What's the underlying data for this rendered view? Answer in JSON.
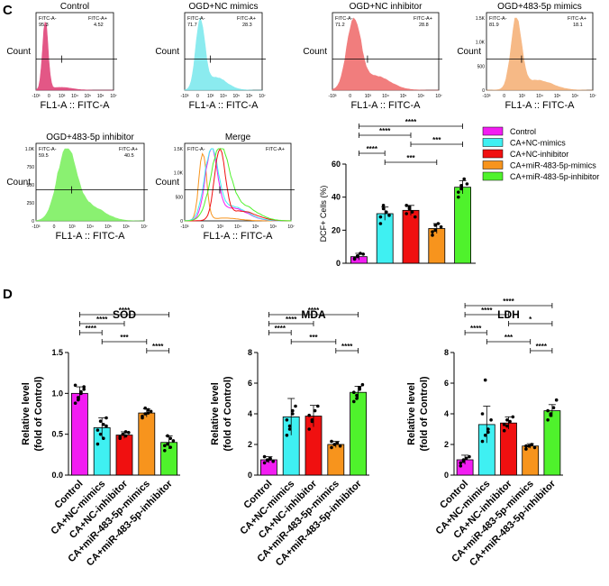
{
  "panel_labels": {
    "c": "C",
    "d": "D"
  },
  "colors": {
    "control": "#f21df2",
    "nc_mimics": "#3ff0f2",
    "nc_inhibitor": "#f01010",
    "mir_mimics": "#f7941d",
    "mir_inhibitor": "#4ff22c"
  },
  "legend": [
    "Control",
    "CA+NC-mimics",
    "CA+NC-inhibitor",
    "CA+miR-483-5p-mimics",
    "CA+miR-483-5p-inhibitor"
  ],
  "flow": {
    "xlabel": "FL1-A :: FITC-A",
    "ylabel": "Count",
    "gate_left": "FITC-A-",
    "gate_right": "FITC-A+",
    "panels": [
      {
        "title": "Control",
        "left_pct": "95.3",
        "right_pct": "4.52",
        "color": "#e0457a",
        "yticks": []
      },
      {
        "title": "OGD+NC mimics",
        "left_pct": "71.7",
        "right_pct": "28.3",
        "color": "#7fe9ee",
        "yticks": []
      },
      {
        "title": "OGD+NC inhibitor",
        "left_pct": "71.2",
        "right_pct": "28.8",
        "color": "#f07070",
        "yticks": []
      },
      {
        "title": "OGD+483-5p mimics",
        "left_pct": "81.9",
        "right_pct": "18.1",
        "color": "#f6b27a",
        "yticks": [
          "1.5K",
          "1.0K",
          "500",
          "0"
        ]
      },
      {
        "title": "OGD+483-5p inhibitor",
        "left_pct": "59.5",
        "right_pct": "40.5",
        "color": "#7ef062",
        "yticks": [
          "1.0K",
          "750",
          "500",
          "250",
          "0"
        ]
      },
      {
        "title": "Merge",
        "left_pct": "",
        "right_pct": "",
        "color": "",
        "yticks": [
          "1.5K",
          "1.0K",
          "500",
          "0"
        ]
      }
    ]
  },
  "chart_data": [
    {
      "type": "bar",
      "id": "dcf",
      "title": "",
      "ylabel": "DCF+ Cells (%)",
      "ylim": [
        0,
        60
      ],
      "yticks": [
        0,
        20,
        40,
        60
      ],
      "categories": [
        "Control",
        "CA+NC-mimics",
        "CA+NC-inhibitor",
        "CA+miR-483-5p-mimics",
        "CA+miR-483-5p-inhibitor"
      ],
      "values": [
        4,
        30,
        32,
        21,
        46
      ],
      "errors": [
        2,
        4,
        3,
        3,
        4
      ],
      "points": [
        [
          2.5,
          4,
          6,
          5.5,
          3,
          4.5
        ],
        [
          24,
          35,
          31,
          29,
          28,
          33
        ],
        [
          30,
          34,
          31,
          28,
          35,
          33
        ],
        [
          17,
          20,
          24,
          22,
          19,
          23
        ],
        [
          40,
          45,
          51,
          48,
          43,
          47
        ]
      ],
      "significance": [
        {
          "from": 0,
          "to": 4,
          "label": "****"
        },
        {
          "from": 0,
          "to": 2,
          "label": "****"
        },
        {
          "from": 2,
          "to": 4,
          "label": "***"
        },
        {
          "from": 0,
          "to": 1,
          "label": "****"
        },
        {
          "from": 1,
          "to": 3,
          "label": "***"
        }
      ]
    },
    {
      "type": "bar",
      "id": "sod",
      "title": "SOD",
      "ylabel": "Relative  level",
      "ylabel2": "(fold of Control)",
      "ylim": [
        0,
        1.5
      ],
      "yticks": [
        "0.0",
        "0.5",
        "1.0",
        "1.5"
      ],
      "categories": [
        "Control",
        "CA+NC-mimics",
        "CA+NC-inhibitor",
        "CA+miR-483-5p-mimics",
        "CA+miR-483-5p-inhibitor"
      ],
      "values": [
        1.0,
        0.58,
        0.49,
        0.76,
        0.4
      ],
      "errors": [
        0.08,
        0.12,
        0.04,
        0.05,
        0.08
      ],
      "points": [
        [
          0.88,
          0.95,
          1.0,
          1.05,
          1.1,
          0.92,
          1.02,
          1.08
        ],
        [
          0.38,
          0.5,
          0.62,
          0.7,
          0.55,
          0.66,
          0.45,
          0.6
        ],
        [
          0.45,
          0.5,
          0.48,
          0.52,
          0.47,
          0.5,
          0.53
        ],
        [
          0.7,
          0.75,
          0.8,
          0.78,
          0.72,
          0.82,
          0.76
        ],
        [
          0.3,
          0.38,
          0.45,
          0.42,
          0.36,
          0.48,
          0.34
        ]
      ],
      "significance": [
        {
          "from": 0,
          "to": 4,
          "label": "****"
        },
        {
          "from": 0,
          "to": 2,
          "label": "****"
        },
        {
          "from": 0,
          "to": 1,
          "label": "****"
        },
        {
          "from": 1,
          "to": 3,
          "label": "***"
        },
        {
          "from": 3,
          "to": 4,
          "label": "****"
        }
      ]
    },
    {
      "type": "bar",
      "id": "mda",
      "title": "MDA",
      "ylabel": "Relative  level",
      "ylabel2": "(fold of Control)",
      "ylim": [
        0,
        8
      ],
      "yticks": [
        "0",
        "2",
        "4",
        "6",
        "8"
      ],
      "categories": [
        "Control",
        "CA+NC-mimics",
        "CA+NC-inhibitor",
        "CA+miR-483-5p-mimics",
        "CA+miR-483-5p-inhibitor"
      ],
      "values": [
        1.0,
        3.8,
        3.85,
        2.0,
        5.4
      ],
      "errors": [
        0.2,
        1.2,
        0.7,
        0.2,
        0.4
      ],
      "points": [
        [
          0.8,
          1.0,
          1.1,
          0.9,
          1.2,
          0.95,
          1.05
        ],
        [
          2.6,
          3.2,
          4.0,
          4.5,
          3.6,
          3.0,
          4.2
        ],
        [
          3.0,
          3.5,
          4.2,
          4.5,
          3.9,
          3.6
        ],
        [
          1.8,
          2.0,
          2.1,
          1.9,
          2.2,
          2.0
        ],
        [
          4.8,
          5.2,
          5.6,
          5.9,
          5.4,
          5.0,
          5.7
        ]
      ],
      "significance": [
        {
          "from": 0,
          "to": 4,
          "label": "****"
        },
        {
          "from": 0,
          "to": 2,
          "label": "****"
        },
        {
          "from": 0,
          "to": 1,
          "label": "****"
        },
        {
          "from": 1,
          "to": 3,
          "label": "***"
        },
        {
          "from": 3,
          "to": 4,
          "label": "****"
        }
      ]
    },
    {
      "type": "bar",
      "id": "ldh",
      "title": "LDH",
      "ylabel": "Relative  level",
      "ylabel2": "(fold of Control)",
      "ylim": [
        0,
        8
      ],
      "yticks": [
        "0",
        "2",
        "4",
        "6",
        "8"
      ],
      "categories": [
        "Control",
        "CA+NC-mimics",
        "CA+NC-inhibitor",
        "CA+miR-483-5p-mimics",
        "CA+miR-483-5p-inhibitor"
      ],
      "values": [
        1.0,
        3.3,
        3.4,
        1.9,
        4.2
      ],
      "errors": [
        0.3,
        1.2,
        0.4,
        0.15,
        0.4
      ],
      "points": [
        [
          0.6,
          0.9,
          1.1,
          1.2,
          0.8,
          1.0
        ],
        [
          2.2,
          2.6,
          3.0,
          3.6,
          4.0,
          6.2,
          2.8
        ],
        [
          2.9,
          3.2,
          3.5,
          3.8,
          3.3,
          3.6
        ],
        [
          1.7,
          1.9,
          2.0,
          1.8,
          1.9
        ],
        [
          3.6,
          4.0,
          4.4,
          4.9,
          4.2,
          3.9
        ]
      ],
      "significance": [
        {
          "from": 0,
          "to": 4,
          "label": "****"
        },
        {
          "from": 0,
          "to": 2,
          "label": "****"
        },
        {
          "from": 2,
          "to": 4,
          "label": "*"
        },
        {
          "from": 0,
          "to": 1,
          "label": "****"
        },
        {
          "from": 1,
          "to": 3,
          "label": "***"
        },
        {
          "from": 3,
          "to": 4,
          "label": "****"
        }
      ]
    }
  ]
}
